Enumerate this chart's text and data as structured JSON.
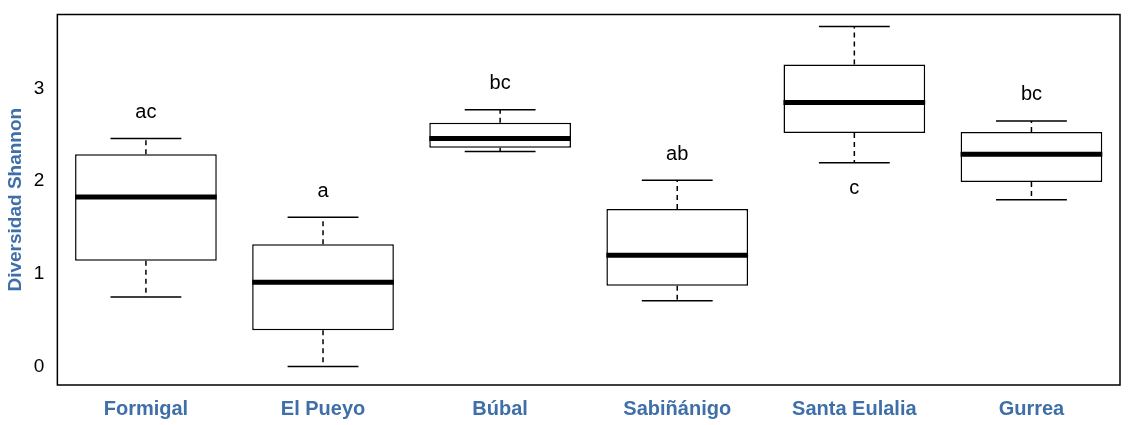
{
  "chart_data": {
    "type": "box",
    "ylabel": "Diversidad Shannon",
    "categories": [
      "Formigal",
      "El Pueyo",
      "Búbal",
      "Sabiñánigo",
      "Santa Eulalia",
      "Gurrea"
    ],
    "boxes": [
      {
        "low": 0.75,
        "q1": 1.14,
        "median": 1.83,
        "q3": 2.29,
        "high": 2.46
      },
      {
        "low": 0,
        "q1": 0.39,
        "median": 0.91,
        "q3": 1.32,
        "high": 1.61
      },
      {
        "low": 2.32,
        "q1": 2.36,
        "median": 2.46,
        "q3": 2.63,
        "high": 2.77
      },
      {
        "low": 0.71,
        "q1": 0.87,
        "median": 1.2,
        "q3": 1.7,
        "high": 2.01
      },
      {
        "low": 2.2,
        "q1": 2.52,
        "median": 2.85,
        "q3": 3.26,
        "high": 3.67
      },
      {
        "low": 1.8,
        "q1": 1.99,
        "median": 2.29,
        "q3": 2.53,
        "high": 2.65
      }
    ],
    "color": "#000000",
    "ylim": [
      -0.2,
      3.8
    ],
    "yticks": [
      0,
      1,
      2,
      3
    ],
    "grid": false,
    "legend": false,
    "annotations": [
      "ac",
      "a",
      "bc",
      "ab",
      "c",
      "bc"
    ]
  }
}
